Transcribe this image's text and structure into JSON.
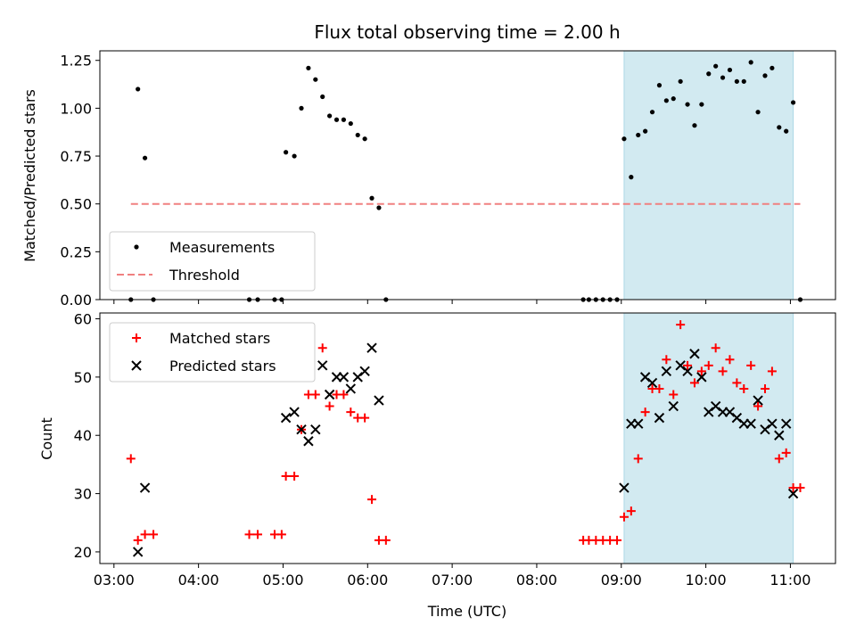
{
  "chart_data": [
    {
      "type": "scatter",
      "title": "Flux total observing time = 2.00 h",
      "xlabel": "",
      "ylabel": "Matched/Predicted stars",
      "ylim": [
        0,
        1.3
      ],
      "yticks": [
        "0.00",
        "0.25",
        "0.50",
        "0.75",
        "1.00",
        "1.25"
      ],
      "ytick_values": [
        0,
        0.25,
        0.5,
        0.75,
        1.0,
        1.25
      ],
      "legend_position": "lower-left",
      "shaded_interval": {
        "start": "09:02",
        "end": "11:02",
        "color": "#add8e6"
      },
      "series": [
        {
          "name": "Measurements",
          "marker": "dot",
          "color": "#000000",
          "points": [
            [
              "03:12",
              0.0
            ],
            [
              "03:17",
              1.1
            ],
            [
              "03:22",
              0.74
            ],
            [
              "03:28",
              0.0
            ],
            [
              "04:36",
              0.0
            ],
            [
              "04:42",
              0.0
            ],
            [
              "04:54",
              0.0
            ],
            [
              "04:59",
              0.0
            ],
            [
              "05:02",
              0.77
            ],
            [
              "05:08",
              0.75
            ],
            [
              "05:13",
              1.0
            ],
            [
              "05:18",
              1.21
            ],
            [
              "05:23",
              1.15
            ],
            [
              "05:28",
              1.06
            ],
            [
              "05:33",
              0.96
            ],
            [
              "05:38",
              0.94
            ],
            [
              "05:43",
              0.94
            ],
            [
              "05:48",
              0.92
            ],
            [
              "05:53",
              0.86
            ],
            [
              "05:58",
              0.84
            ],
            [
              "06:03",
              0.53
            ],
            [
              "06:08",
              0.48
            ],
            [
              "06:13",
              0.0
            ],
            [
              "08:33",
              0.0
            ],
            [
              "08:37",
              0.0
            ],
            [
              "08:42",
              0.0
            ],
            [
              "08:47",
              0.0
            ],
            [
              "08:52",
              0.0
            ],
            [
              "08:57",
              0.0
            ],
            [
              "09:02",
              0.84
            ],
            [
              "09:07",
              0.64
            ],
            [
              "09:12",
              0.86
            ],
            [
              "09:17",
              0.88
            ],
            [
              "09:22",
              0.98
            ],
            [
              "09:27",
              1.12
            ],
            [
              "09:32",
              1.04
            ],
            [
              "09:37",
              1.05
            ],
            [
              "09:42",
              1.14
            ],
            [
              "09:47",
              1.02
            ],
            [
              "09:52",
              0.91
            ],
            [
              "09:57",
              1.02
            ],
            [
              "10:02",
              1.18
            ],
            [
              "10:07",
              1.22
            ],
            [
              "10:12",
              1.16
            ],
            [
              "10:17",
              1.2
            ],
            [
              "10:22",
              1.14
            ],
            [
              "10:27",
              1.14
            ],
            [
              "10:32",
              1.24
            ],
            [
              "10:37",
              0.98
            ],
            [
              "10:42",
              1.17
            ],
            [
              "10:47",
              1.21
            ],
            [
              "10:52",
              0.9
            ],
            [
              "10:57",
              0.88
            ],
            [
              "11:02",
              1.03
            ],
            [
              "11:07",
              0.0
            ]
          ]
        },
        {
          "name": "Threshold",
          "marker": "dashed-line",
          "color": "#f08080",
          "points": [
            [
              "03:12",
              0.5
            ],
            [
              "11:07",
              0.5
            ]
          ]
        }
      ]
    },
    {
      "type": "scatter",
      "title": "",
      "xlabel": "Time (UTC)",
      "ylabel": "Count",
      "ylim": [
        18,
        61
      ],
      "yticks": [
        "20",
        "30",
        "40",
        "50",
        "60"
      ],
      "ytick_values": [
        20,
        30,
        40,
        50,
        60
      ],
      "xticks": [
        "03:00",
        "04:00",
        "05:00",
        "06:00",
        "07:00",
        "08:00",
        "09:00",
        "10:00",
        "11:00"
      ],
      "xlim": [
        "02:50",
        "11:32"
      ],
      "legend_position": "upper-left",
      "shaded_interval": {
        "start": "09:02",
        "end": "11:02",
        "color": "#add8e6"
      },
      "series": [
        {
          "name": "Matched stars",
          "marker": "plus",
          "color": "#ff0000",
          "points": [
            [
              "03:12",
              36
            ],
            [
              "03:17",
              22
            ],
            [
              "03:22",
              23
            ],
            [
              "03:28",
              23
            ],
            [
              "04:36",
              23
            ],
            [
              "04:42",
              23
            ],
            [
              "04:54",
              23
            ],
            [
              "04:59",
              23
            ],
            [
              "05:02",
              33
            ],
            [
              "05:08",
              33
            ],
            [
              "05:13",
              41
            ],
            [
              "05:18",
              47
            ],
            [
              "05:23",
              47
            ],
            [
              "05:28",
              55
            ],
            [
              "05:33",
              45
            ],
            [
              "05:38",
              47
            ],
            [
              "05:43",
              47
            ],
            [
              "05:48",
              44
            ],
            [
              "05:53",
              43
            ],
            [
              "05:58",
              43
            ],
            [
              "06:03",
              29
            ],
            [
              "06:08",
              22
            ],
            [
              "06:13",
              22
            ],
            [
              "08:33",
              22
            ],
            [
              "08:37",
              22
            ],
            [
              "08:42",
              22
            ],
            [
              "08:47",
              22
            ],
            [
              "08:52",
              22
            ],
            [
              "08:57",
              22
            ],
            [
              "09:02",
              26
            ],
            [
              "09:07",
              27
            ],
            [
              "09:12",
              36
            ],
            [
              "09:17",
              44
            ],
            [
              "09:22",
              48
            ],
            [
              "09:27",
              48
            ],
            [
              "09:32",
              53
            ],
            [
              "09:37",
              47
            ],
            [
              "09:42",
              59
            ],
            [
              "09:47",
              52
            ],
            [
              "09:52",
              49
            ],
            [
              "09:57",
              51
            ],
            [
              "10:02",
              52
            ],
            [
              "10:07",
              55
            ],
            [
              "10:12",
              51
            ],
            [
              "10:17",
              53
            ],
            [
              "10:22",
              49
            ],
            [
              "10:27",
              48
            ],
            [
              "10:32",
              52
            ],
            [
              "10:37",
              45
            ],
            [
              "10:42",
              48
            ],
            [
              "10:47",
              51
            ],
            [
              "10:52",
              36
            ],
            [
              "10:57",
              37
            ],
            [
              "11:02",
              31
            ],
            [
              "11:07",
              31
            ]
          ]
        },
        {
          "name": "Predicted stars",
          "marker": "x",
          "color": "#000000",
          "points": [
            [
              "03:17",
              20
            ],
            [
              "03:22",
              31
            ],
            [
              "05:02",
              43
            ],
            [
              "05:08",
              44
            ],
            [
              "05:13",
              41
            ],
            [
              "05:18",
              39
            ],
            [
              "05:23",
              41
            ],
            [
              "05:28",
              52
            ],
            [
              "05:33",
              47
            ],
            [
              "05:38",
              50
            ],
            [
              "05:43",
              50
            ],
            [
              "05:48",
              48
            ],
            [
              "05:53",
              50
            ],
            [
              "05:58",
              51
            ],
            [
              "06:03",
              55
            ],
            [
              "06:08",
              46
            ],
            [
              "09:02",
              31
            ],
            [
              "09:07",
              42
            ],
            [
              "09:12",
              42
            ],
            [
              "09:17",
              50
            ],
            [
              "09:22",
              49
            ],
            [
              "09:27",
              43
            ],
            [
              "09:32",
              51
            ],
            [
              "09:37",
              45
            ],
            [
              "09:42",
              52
            ],
            [
              "09:47",
              51
            ],
            [
              "09:52",
              54
            ],
            [
              "09:57",
              50
            ],
            [
              "10:02",
              44
            ],
            [
              "10:07",
              45
            ],
            [
              "10:12",
              44
            ],
            [
              "10:17",
              44
            ],
            [
              "10:22",
              43
            ],
            [
              "10:27",
              42
            ],
            [
              "10:32",
              42
            ],
            [
              "10:37",
              46
            ],
            [
              "10:42",
              41
            ],
            [
              "10:47",
              42
            ],
            [
              "10:52",
              40
            ],
            [
              "10:57",
              42
            ],
            [
              "11:02",
              30
            ]
          ]
        }
      ]
    }
  ]
}
